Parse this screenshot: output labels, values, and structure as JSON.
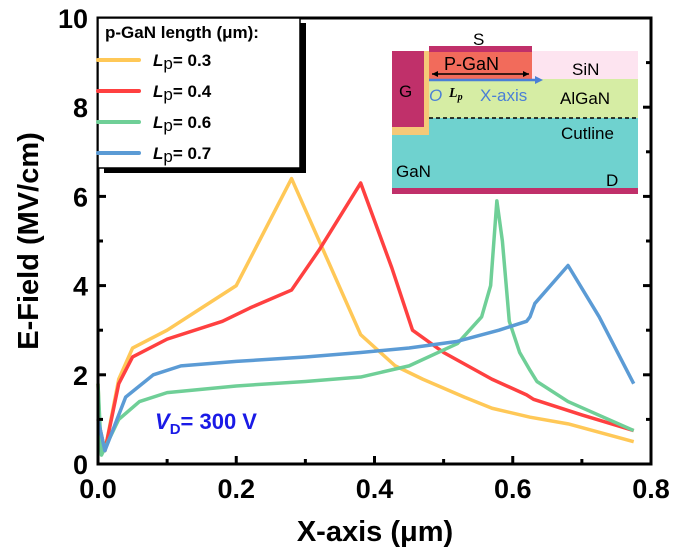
{
  "chart_data": {
    "type": "line",
    "xlabel": "X-axis (μm)",
    "ylabel": "E-Field (MV/cm)",
    "xlim": [
      0,
      0.8
    ],
    "ylim": [
      0,
      10
    ],
    "xticks": [
      "0.0",
      "0.2",
      "0.4",
      "0.6",
      "0.8"
    ],
    "yticks": [
      "0",
      "2",
      "4",
      "6",
      "8",
      "10"
    ],
    "grid": false,
    "legend": {
      "title": "p-GaN length (μm):",
      "placement": "top-left"
    },
    "annotation": {
      "prefix": "V",
      "sub": "D",
      "text": "= 300 V",
      "color": "#1a1ae6"
    },
    "series": [
      {
        "name_prefix": "L",
        "name_sub": "p",
        "name": "= 0.3",
        "color": "#ffc857",
        "x": [
          0,
          0.003,
          0.01,
          0.03,
          0.05,
          0.1,
          0.15,
          0.2,
          0.28,
          0.38,
          0.43,
          0.47,
          0.53,
          0.57,
          0.625,
          0.68,
          0.775
        ],
        "y": [
          1.8,
          0.6,
          0.3,
          1.9,
          2.6,
          3.0,
          3.5,
          4.0,
          6.4,
          2.9,
          2.2,
          1.9,
          1.5,
          1.25,
          1.05,
          0.9,
          0.5
        ]
      },
      {
        "name_prefix": "L",
        "name_sub": "p",
        "name": "= 0.4",
        "color": "#ff4040",
        "x": [
          0,
          0.01,
          0.03,
          0.05,
          0.1,
          0.18,
          0.22,
          0.28,
          0.32,
          0.38,
          0.425,
          0.455,
          0.5,
          0.57,
          0.62,
          0.63,
          0.7,
          0.775
        ],
        "y": [
          1.0,
          0.3,
          1.8,
          2.4,
          2.8,
          3.2,
          3.5,
          3.9,
          4.8,
          6.3,
          4.4,
          3.0,
          2.5,
          1.9,
          1.55,
          1.45,
          1.1,
          0.75
        ]
      },
      {
        "name_prefix": "L",
        "name_sub": "p",
        "name": "= 0.6",
        "color": "#6fcf97",
        "x": [
          0,
          0.005,
          0.03,
          0.06,
          0.1,
          0.2,
          0.3,
          0.38,
          0.45,
          0.52,
          0.555,
          0.568,
          0.577,
          0.585,
          0.595,
          0.61,
          0.625,
          0.635,
          0.68,
          0.775
        ],
        "y": [
          1.8,
          0.2,
          1.0,
          1.4,
          1.6,
          1.75,
          1.85,
          1.95,
          2.2,
          2.7,
          3.3,
          4.0,
          5.9,
          5.0,
          3.2,
          2.5,
          2.1,
          1.85,
          1.4,
          0.75
        ]
      },
      {
        "name_prefix": "L",
        "name_sub": "p",
        "name": "= 0.7",
        "color": "#5b9bd5",
        "x": [
          0,
          0.01,
          0.04,
          0.08,
          0.12,
          0.2,
          0.3,
          0.38,
          0.45,
          0.52,
          0.58,
          0.62,
          0.625,
          0.632,
          0.68,
          0.725,
          0.775
        ],
        "y": [
          1.0,
          0.3,
          1.5,
          2.0,
          2.2,
          2.3,
          2.4,
          2.5,
          2.6,
          2.75,
          3.0,
          3.2,
          3.3,
          3.6,
          4.45,
          3.3,
          1.8
        ]
      }
    ],
    "inset": {
      "labels": {
        "source": "S",
        "pgan": "P-GaN",
        "sin": "SiN",
        "gate": "G",
        "origin": "O",
        "lp": "L",
        "lp_sub": "p",
        "xaxis": "X-axis",
        "algan": "AlGaN",
        "cutline": "Cutline",
        "gan": "GaN",
        "drain": "D"
      },
      "colors": {
        "metal": "#c0306a",
        "pgan": "#f26b5b",
        "sin": "#fde4f0",
        "algan": "#d6eda4",
        "gan": "#6fd2cf",
        "spacer": "#f5c978",
        "arrow": "#4a7fd6"
      }
    }
  }
}
